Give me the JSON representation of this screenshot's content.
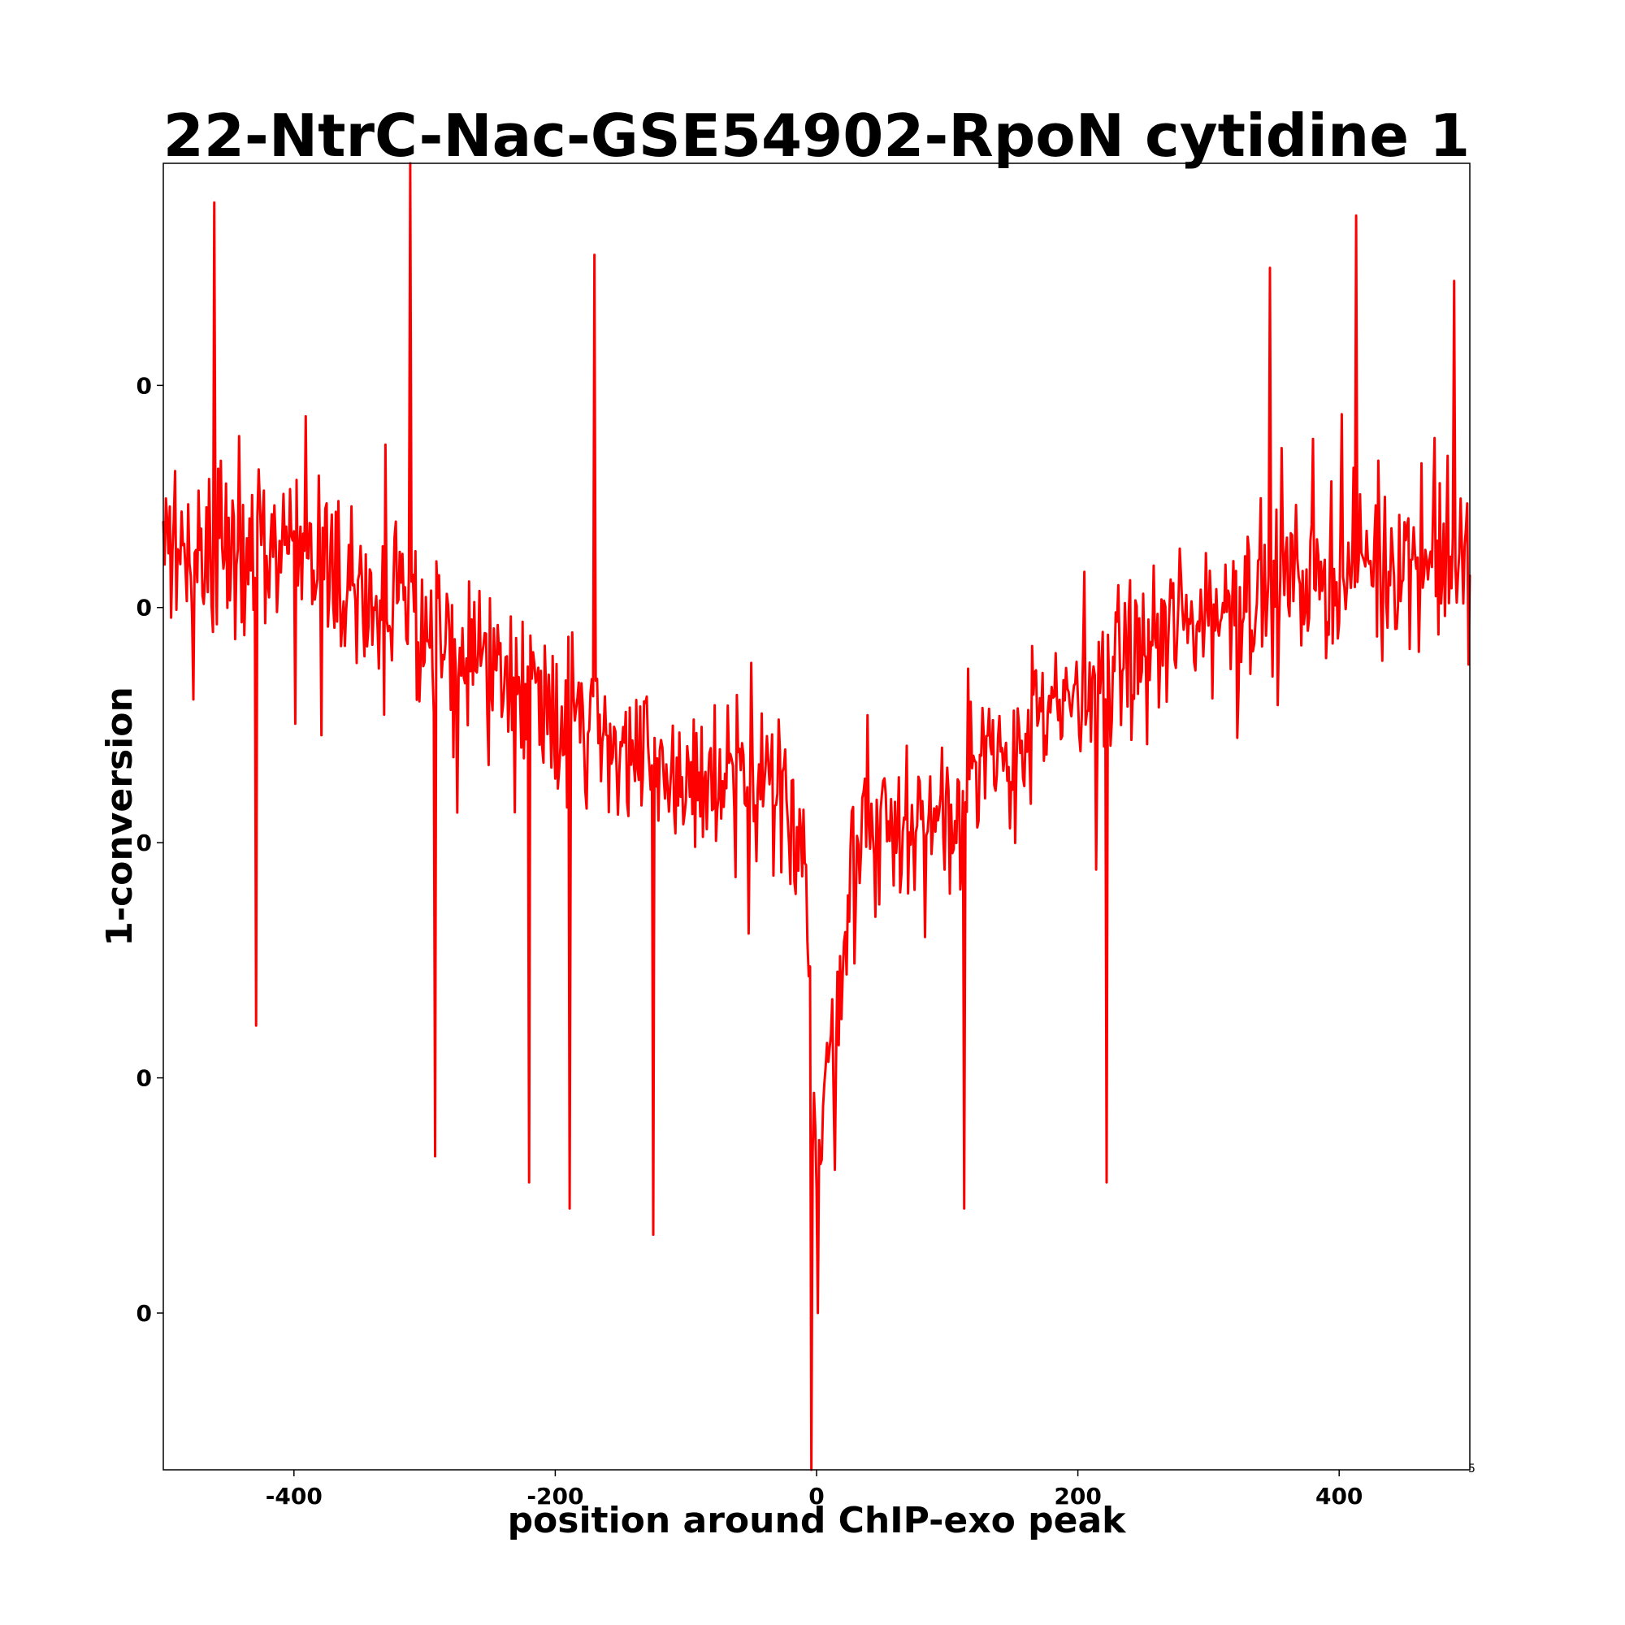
{
  "chart_data": {
    "type": "line",
    "title": "22-NtrC-Nac-GSE54902-RpoN cytidine 1",
    "xlabel": "position around ChIP-exo peak",
    "ylabel": "1-conversion",
    "xlim": [
      -500,
      500
    ],
    "ylim": [
      0,
      1
    ],
    "x_ticks": [
      -400,
      -200,
      0,
      200,
      400
    ],
    "x_tick_labels": [
      "-400",
      "-200",
      "0",
      "200",
      "400"
    ],
    "y_ticks": [
      0.12,
      0.3,
      0.48,
      0.66,
      0.83
    ],
    "y_tick_labels": [
      "0",
      "0",
      "0",
      "0",
      "0"
    ],
    "corner_label": "5",
    "grid": false,
    "legend": "none",
    "series": [
      {
        "color": "#ff0000",
        "x_start": -500,
        "x_step": 1,
        "note_anchors": "values below are control anchors; per-position noise is generated deterministically by the drawing script",
        "anchors": [
          {
            "x": -500,
            "y": 0.7
          },
          {
            "x": -400,
            "y": 0.71
          },
          {
            "x": -300,
            "y": 0.64
          },
          {
            "x": -200,
            "y": 0.59
          },
          {
            "x": -120,
            "y": 0.53
          },
          {
            "x": -60,
            "y": 0.52
          },
          {
            "x": -10,
            "y": 0.5
          },
          {
            "x": 0,
            "y": 0.22
          },
          {
            "x": 8,
            "y": 0.3
          },
          {
            "x": 30,
            "y": 0.48
          },
          {
            "x": 80,
            "y": 0.49
          },
          {
            "x": 150,
            "y": 0.55
          },
          {
            "x": 250,
            "y": 0.63
          },
          {
            "x": 350,
            "y": 0.68
          },
          {
            "x": 450,
            "y": 0.7
          },
          {
            "x": 500,
            "y": 0.69
          }
        ],
        "noise_amplitude": 0.085,
        "spikes": [
          {
            "x": -311,
            "y": 1.0
          },
          {
            "x": -461,
            "y": 0.97
          },
          {
            "x": -170,
            "y": 0.93
          },
          {
            "x": 413,
            "y": 0.96
          },
          {
            "x": -4,
            "y": 0.0
          },
          {
            "x": 1,
            "y": 0.12
          },
          {
            "x": -125,
            "y": 0.18
          },
          {
            "x": -189,
            "y": 0.2
          },
          {
            "x": -220,
            "y": 0.22
          },
          {
            "x": -292,
            "y": 0.24
          },
          {
            "x": 113,
            "y": 0.2
          },
          {
            "x": 222,
            "y": 0.22
          },
          {
            "x": -429,
            "y": 0.34
          },
          {
            "x": 347,
            "y": 0.92
          },
          {
            "x": 488,
            "y": 0.91
          }
        ]
      }
    ]
  }
}
